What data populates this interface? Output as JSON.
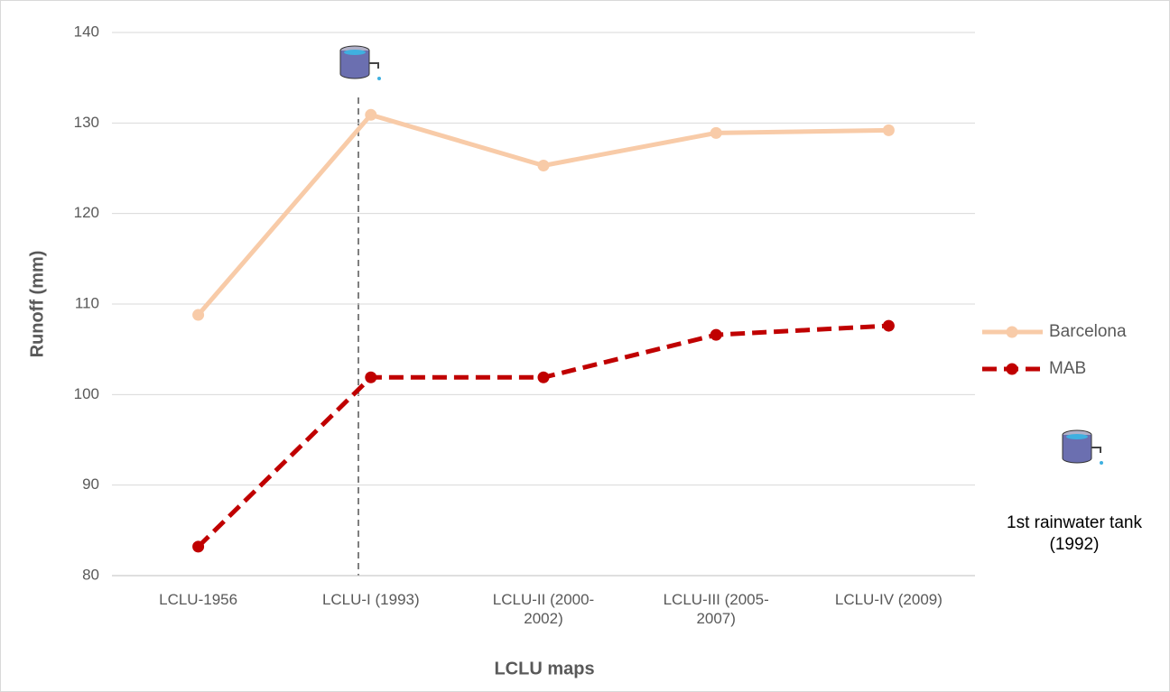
{
  "chart_data": {
    "type": "line",
    "x_label": "LCLU maps",
    "y_label": "Runoff (mm)",
    "annotation": "1st rainwater tank (1992)",
    "categories": [
      "LCLU-1956",
      "LCLU-I (1993)",
      "LCLU-II (2000-2002)",
      "LCLU-III (2005-2007)",
      "LCLU-IV (2009)"
    ],
    "series": [
      {
        "name": "Barcelona",
        "color": "#f8cba8",
        "dashed": false,
        "values": [
          108.8,
          130.9,
          125.3,
          128.9,
          129.2
        ]
      },
      {
        "name": "MAB",
        "color": "#c00000",
        "dashed": true,
        "values": [
          83.2,
          101.9,
          101.9,
          106.6,
          107.6
        ]
      }
    ],
    "ylim": [
      80,
      140
    ],
    "yticks": [
      80,
      90,
      100,
      110,
      120,
      130,
      140
    ],
    "grid": true,
    "legend": "right"
  }
}
